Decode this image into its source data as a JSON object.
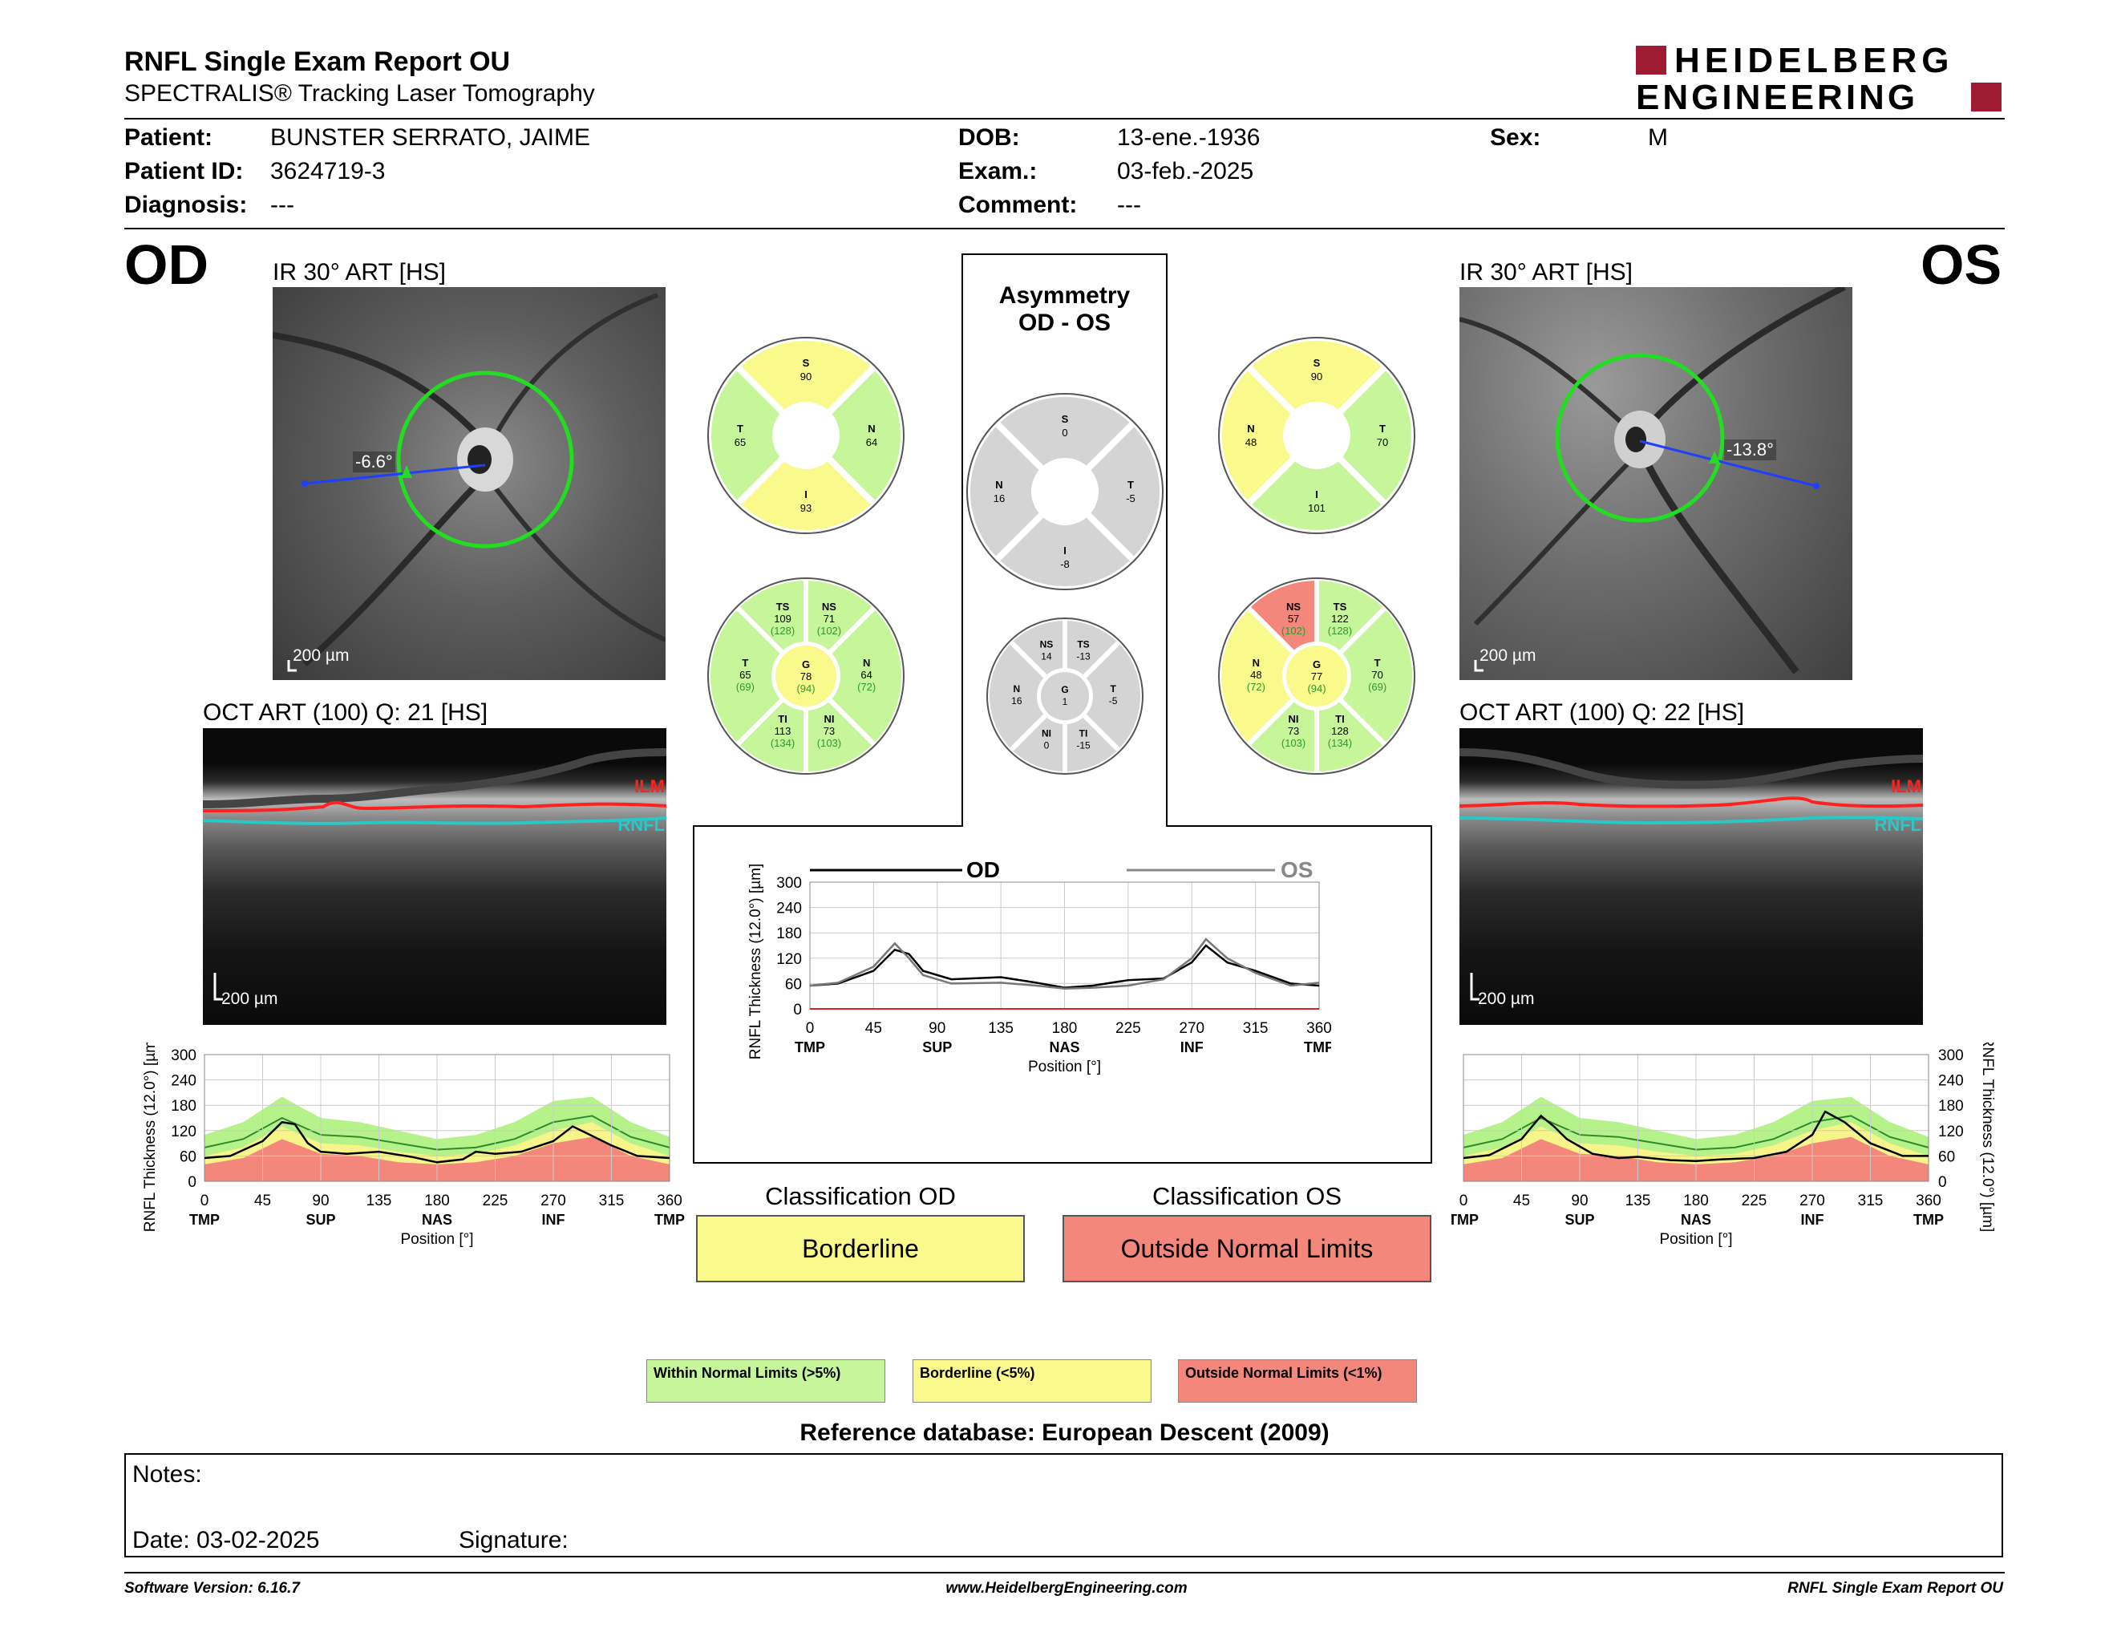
{
  "report": {
    "title": "RNFL Single Exam Report OU",
    "subtitle": "SPECTRALIS® Tracking Laser Tomography",
    "brand_line1": "HEIDELBERG",
    "brand_line2": "ENGINEERING"
  },
  "patient": {
    "patient_label": "Patient:",
    "patient_value": "BUNSTER SERRATO, JAIME",
    "id_label": "Patient ID:",
    "id_value": "3624719-3",
    "diagnosis_label": "Diagnosis:",
    "diagnosis_value": "---",
    "dob_label": "DOB:",
    "dob_value": "13-ene.-1936",
    "exam_label": "Exam.:",
    "exam_value": "03-feb.-2025",
    "comment_label": "Comment:",
    "comment_value": "---",
    "sex_label": "Sex:",
    "sex_value": "M"
  },
  "od": {
    "eye": "OD",
    "ir_title": "IR 30° ART [HS]",
    "angle": "-6.6°",
    "ir_scale": "200 µm",
    "oct_title": "OCT ART (100) Q: 21 [HS]",
    "oct_scale": "200 µm",
    "ilm": "ILM",
    "rnfl": "RNFL",
    "classification_title": "Classification OD",
    "classification": "Borderline",
    "sectors4": {
      "S": "90",
      "T": "65",
      "N": "64",
      "I": "93"
    },
    "sectors6": {
      "TS": {
        "v": "109",
        "r": "(128)"
      },
      "NS": {
        "v": "71",
        "r": "(102)"
      },
      "T": {
        "v": "65",
        "r": "(69)"
      },
      "G": {
        "v": "78",
        "r": "(94)"
      },
      "N": {
        "v": "64",
        "r": "(72)"
      },
      "TI": {
        "v": "113",
        "r": "(134)"
      },
      "NI": {
        "v": "73",
        "r": "(103)"
      }
    }
  },
  "os": {
    "eye": "OS",
    "ir_title": "IR 30° ART [HS]",
    "angle": "-13.8°",
    "ir_scale": "200 µm",
    "oct_title": "OCT ART (100) Q: 22 [HS]",
    "oct_scale": "200 µm",
    "ilm": "ILM",
    "rnfl": "RNFL",
    "classification_title": "Classification OS",
    "classification": "Outside Normal Limits",
    "sectors4": {
      "S": "90",
      "N": "48",
      "T": "70",
      "I": "101"
    },
    "sectors6": {
      "NS": {
        "v": "57",
        "r": "(102)"
      },
      "TS": {
        "v": "122",
        "r": "(128)"
      },
      "N": {
        "v": "48",
        "r": "(72)"
      },
      "G": {
        "v": "77",
        "r": "(94)"
      },
      "T": {
        "v": "70",
        "r": "(69)"
      },
      "NI": {
        "v": "73",
        "r": "(103)"
      },
      "TI": {
        "v": "128",
        "r": "(134)"
      }
    }
  },
  "asymmetry": {
    "title1": "Asymmetry",
    "title2": "OD - OS",
    "sectors4": {
      "S": "0",
      "N": "16",
      "T": "-5",
      "I": "-8"
    },
    "sectors6": {
      "NS": "14",
      "TS": "-13",
      "N": "16",
      "G": "1",
      "T": "-5",
      "NI": "0",
      "TI": "-15"
    },
    "legend_od": "OD",
    "legend_os": "OS"
  },
  "chart_common": {
    "ylabel": "RNFL Thickness (12.0°) [µm]",
    "xlabel": "Position [°]",
    "yticks": [
      "300",
      "240",
      "180",
      "120",
      "60",
      "0"
    ],
    "yticks_center": [
      "300",
      "240",
      "180",
      "120",
      "60",
      "0"
    ],
    "xticks": [
      "0",
      "45",
      "90",
      "135",
      "180",
      "225",
      "270",
      "315",
      "360"
    ],
    "regions": [
      "TMP",
      "SUP",
      "NAS",
      "INF",
      "TMP"
    ]
  },
  "chart_data": [
    {
      "type": "line",
      "title": "",
      "xlabel": "Position [°]",
      "ylabel": "RNFL Thickness (12.0°) [µm]",
      "ylim": [
        0,
        300
      ],
      "xlim": [
        0,
        360
      ],
      "x": [
        0,
        20,
        45,
        60,
        70,
        80,
        90,
        110,
        135,
        160,
        180,
        200,
        210,
        225,
        245,
        270,
        285,
        295,
        315,
        335,
        360
      ],
      "series": [
        {
          "values": [
            55,
            60,
            95,
            140,
            135,
            90,
            70,
            65,
            70,
            58,
            45,
            52,
            70,
            65,
            70,
            95,
            130,
            115,
            85,
            60,
            55
          ]
        }
      ]
    },
    {
      "type": "line",
      "title": "",
      "xlabel": "Position [°]",
      "ylabel": "RNFL Thickness (12.0°) [µm]",
      "ylim": [
        0,
        300
      ],
      "xlim": [
        0,
        360
      ],
      "x": [
        0,
        20,
        45,
        60,
        70,
        80,
        100,
        135,
        160,
        180,
        200,
        225,
        250,
        270,
        280,
        295,
        315,
        340,
        360
      ],
      "series": [
        {
          "name": "OD",
          "values": [
            55,
            60,
            90,
            140,
            130,
            90,
            70,
            75,
            62,
            50,
            55,
            68,
            72,
            110,
            150,
            110,
            90,
            60,
            55
          ]
        },
        {
          "name": "OS",
          "values": [
            55,
            62,
            100,
            155,
            120,
            80,
            60,
            62,
            55,
            48,
            50,
            55,
            70,
            120,
            165,
            120,
            85,
            55,
            62
          ]
        }
      ]
    },
    {
      "type": "line",
      "title": "",
      "xlabel": "Position [°]",
      "ylabel": "RNFL Thickness (12.0°) [µm]",
      "ylim": [
        0,
        300
      ],
      "xlim": [
        0,
        360
      ],
      "x": [
        0,
        20,
        45,
        60,
        70,
        80,
        100,
        120,
        135,
        160,
        180,
        200,
        225,
        250,
        270,
        280,
        295,
        315,
        340,
        360
      ],
      "series": [
        {
          "values": [
            55,
            62,
            100,
            155,
            130,
            100,
            65,
            55,
            58,
            50,
            48,
            52,
            55,
            70,
            110,
            165,
            140,
            90,
            60,
            60
          ]
        }
      ]
    }
  ],
  "legend": {
    "within": "Within Normal Limits (>5%)",
    "borderline": "Borderline (<5%)",
    "outside": "Outside Normal Limits (<1%)",
    "colors": {
      "green": "#c6f59a",
      "yellow": "#fafa8c",
      "red": "#f4877c",
      "gray": "#d4d4d4"
    }
  },
  "reference_db": "Reference database: European Descent (2009)",
  "notes": {
    "notes_label": "Notes:",
    "date_label": "Date: 03-02-2025",
    "signature_label": "Signature:"
  },
  "footer": {
    "version": "Software Version: 6.16.7",
    "website": "www.HeidelbergEngineering.com",
    "report": "RNFL Single Exam Report OU"
  }
}
